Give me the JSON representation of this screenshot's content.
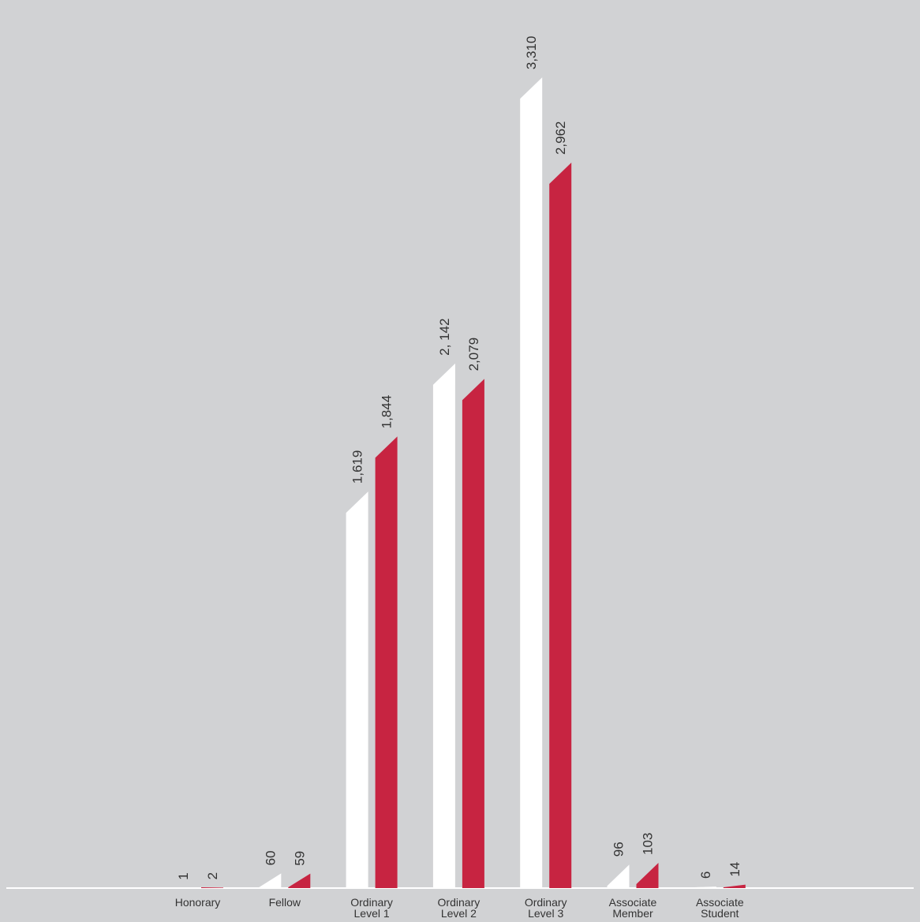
{
  "chart_data": {
    "type": "bar",
    "categories": [
      [
        "Honorary"
      ],
      [
        "Fellow"
      ],
      [
        "Ordinary",
        "Level 1"
      ],
      [
        "Ordinary",
        "Level 2"
      ],
      [
        "Ordinary",
        "Level 3"
      ],
      [
        "Associate",
        "Member"
      ],
      [
        "Associate",
        "Student"
      ]
    ],
    "series": [
      {
        "values": [
          1,
          60,
          1619,
          2142,
          3310,
          96,
          6
        ],
        "labels": [
          "1",
          "60",
          "1,619",
          "2, 142",
          "3,310",
          "96",
          "6"
        ]
      },
      {
        "values": [
          2,
          59,
          1844,
          2079,
          2962,
          103,
          14
        ],
        "labels": [
          "2",
          "59",
          "1,844",
          "2,079",
          "2,962",
          "103",
          "14"
        ]
      }
    ],
    "colors": [
      "#ffffff",
      "#c72441"
    ],
    "background": "#d1d2d4",
    "title": "",
    "xlabel": "",
    "ylabel": "",
    "grid": false,
    "legend": "none"
  }
}
